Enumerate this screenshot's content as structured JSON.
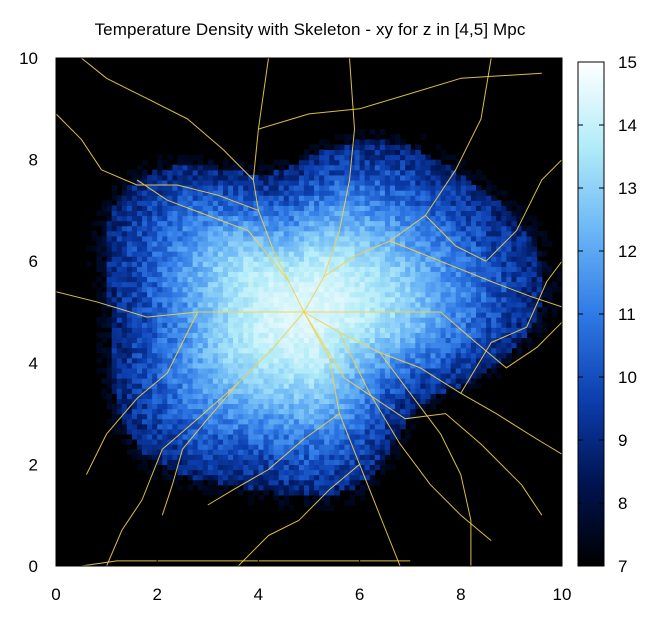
{
  "title": "Temperature Density with Skeleton - xy for z in [4,5] Mpc",
  "chart_data": {
    "type": "heatmap",
    "title": "Temperature Density with Skeleton - xy for z in [4,5] Mpc",
    "xlabel": "",
    "ylabel": "",
    "xlim": [
      0,
      10
    ],
    "ylim": [
      0,
      10
    ],
    "x_ticks": [
      "0",
      "2",
      "4",
      "6",
      "8",
      "10"
    ],
    "y_ticks": [
      "0",
      "2",
      "4",
      "6",
      "8",
      "10"
    ],
    "colorbar": {
      "range": [
        7,
        15
      ],
      "ticks": [
        "7",
        "8",
        "9",
        "10",
        "11",
        "12",
        "13",
        "14",
        "15"
      ],
      "colors": [
        "#000000",
        "#001452",
        "#0c3fb0",
        "#2f7ae6",
        "#6cb7f6",
        "#b2ecf8",
        "#ffffff"
      ]
    },
    "density_field": {
      "center": [
        4.9,
        5.0
      ],
      "peak": 14.4,
      "background": 7,
      "note": "blob of log temperature density, max near center, falloff toward edges"
    },
    "skeleton_color": "#f2d14a",
    "skeleton": [
      [
        [
          4.9,
          5.0
        ],
        [
          4.6,
          5.6
        ],
        [
          4.3,
          6.2
        ],
        [
          4.0,
          7.0
        ],
        [
          3.9,
          7.6
        ],
        [
          4.0,
          8.6
        ],
        [
          4.2,
          10.0
        ]
      ],
      [
        [
          4.9,
          5.0
        ],
        [
          5.3,
          5.7
        ],
        [
          5.9,
          6.1
        ],
        [
          6.6,
          6.4
        ],
        [
          7.3,
          6.9
        ],
        [
          7.9,
          7.8
        ],
        [
          8.4,
          8.8
        ],
        [
          8.6,
          10.0
        ]
      ],
      [
        [
          4.9,
          5.0
        ],
        [
          5.6,
          4.6
        ],
        [
          6.4,
          4.2
        ],
        [
          7.2,
          3.9
        ],
        [
          8.0,
          3.4
        ],
        [
          8.7,
          3.0
        ],
        [
          9.5,
          2.5
        ],
        [
          10.0,
          2.2
        ]
      ],
      [
        [
          4.9,
          5.0
        ],
        [
          4.3,
          4.3
        ],
        [
          3.6,
          3.6
        ],
        [
          2.8,
          2.9
        ],
        [
          2.1,
          2.3
        ]
      ],
      [
        [
          4.9,
          5.0
        ],
        [
          5.4,
          4.1
        ],
        [
          5.6,
          3.0
        ],
        [
          6.0,
          2.0
        ],
        [
          6.4,
          1.0
        ],
        [
          6.8,
          0.0
        ]
      ],
      [
        [
          4.9,
          5.0
        ],
        [
          3.9,
          5.0
        ],
        [
          2.8,
          5.0
        ],
        [
          1.8,
          4.9
        ],
        [
          0.8,
          5.2
        ],
        [
          0.0,
          5.4
        ]
      ],
      [
        [
          4.9,
          5.0
        ],
        [
          5.6,
          5.0
        ],
        [
          6.6,
          5.0
        ],
        [
          7.6,
          5.0
        ],
        [
          8.3,
          4.4
        ],
        [
          8.9,
          3.9
        ],
        [
          9.5,
          4.3
        ],
        [
          10.0,
          4.8
        ]
      ],
      [
        [
          4.0,
          7.0
        ],
        [
          3.2,
          7.3
        ],
        [
          2.4,
          7.5
        ],
        [
          1.6,
          7.5
        ],
        [
          0.9,
          7.8
        ],
        [
          0.5,
          8.4
        ],
        [
          0.0,
          8.9
        ]
      ],
      [
        [
          3.9,
          7.6
        ],
        [
          3.3,
          8.2
        ],
        [
          2.6,
          8.8
        ],
        [
          1.8,
          9.2
        ],
        [
          1.0,
          9.6
        ],
        [
          0.5,
          10.0
        ]
      ],
      [
        [
          4.6,
          5.6
        ],
        [
          3.8,
          6.6
        ],
        [
          3.0,
          6.9
        ],
        [
          2.2,
          7.2
        ],
        [
          1.6,
          7.6
        ]
      ],
      [
        [
          5.3,
          5.7
        ],
        [
          5.6,
          6.6
        ],
        [
          5.8,
          7.6
        ],
        [
          5.9,
          8.6
        ],
        [
          5.8,
          10.0
        ]
      ],
      [
        [
          4.0,
          8.6
        ],
        [
          5.0,
          8.9
        ],
        [
          6.0,
          9.0
        ],
        [
          7.0,
          9.3
        ],
        [
          8.0,
          9.6
        ],
        [
          9.6,
          9.7
        ]
      ],
      [
        [
          6.6,
          6.4
        ],
        [
          7.6,
          6.0
        ],
        [
          8.6,
          5.6
        ],
        [
          9.4,
          5.3
        ],
        [
          10.0,
          5.1
        ]
      ],
      [
        [
          7.3,
          6.9
        ],
        [
          7.9,
          6.3
        ],
        [
          8.5,
          6.0
        ],
        [
          9.1,
          6.6
        ],
        [
          9.6,
          7.6
        ],
        [
          10.0,
          8.0
        ]
      ],
      [
        [
          5.6,
          3.0
        ],
        [
          4.9,
          2.5
        ],
        [
          4.2,
          1.9
        ],
        [
          3.5,
          1.5
        ],
        [
          3.0,
          1.2
        ]
      ],
      [
        [
          2.1,
          2.3
        ],
        [
          1.7,
          1.3
        ],
        [
          1.3,
          0.7
        ],
        [
          1.0,
          0.0
        ]
      ],
      [
        [
          6.4,
          4.2
        ],
        [
          7.0,
          3.4
        ],
        [
          7.6,
          2.6
        ],
        [
          8.0,
          1.8
        ],
        [
          8.2,
          0.9
        ],
        [
          8.2,
          0.0
        ]
      ],
      [
        [
          5.6,
          4.6
        ],
        [
          6.2,
          3.4
        ],
        [
          6.8,
          2.4
        ],
        [
          7.4,
          1.6
        ],
        [
          8.0,
          1.0
        ],
        [
          8.6,
          0.5
        ]
      ],
      [
        [
          2.8,
          5.0
        ],
        [
          2.5,
          4.4
        ],
        [
          2.2,
          3.8
        ],
        [
          1.6,
          3.3
        ],
        [
          1.0,
          2.6
        ],
        [
          0.6,
          1.8
        ]
      ],
      [
        [
          4.9,
          5.0
        ],
        [
          5.7,
          3.7
        ],
        [
          6.9,
          2.9
        ],
        [
          7.7,
          3.0
        ],
        [
          8.4,
          2.4
        ],
        [
          9.2,
          1.6
        ],
        [
          9.6,
          1.0
        ]
      ],
      [
        [
          8.0,
          3.4
        ],
        [
          8.6,
          4.4
        ],
        [
          9.3,
          4.7
        ],
        [
          9.7,
          5.6
        ],
        [
          10.0,
          6.0
        ]
      ],
      [
        [
          3.6,
          3.6
        ],
        [
          3.0,
          2.9
        ],
        [
          2.5,
          2.3
        ],
        [
          2.3,
          1.6
        ],
        [
          2.1,
          1.0
        ]
      ],
      [
        [
          6.0,
          2.0
        ],
        [
          5.4,
          1.5
        ],
        [
          4.8,
          0.9
        ],
        [
          4.2,
          0.6
        ],
        [
          3.6,
          0.0
        ]
      ],
      [
        [
          0.5,
          0.0
        ],
        [
          1.2,
          0.1
        ],
        [
          2.4,
          0.1
        ],
        [
          4.0,
          0.1
        ],
        [
          5.6,
          0.1
        ],
        [
          7.0,
          0.1
        ]
      ]
    ]
  }
}
